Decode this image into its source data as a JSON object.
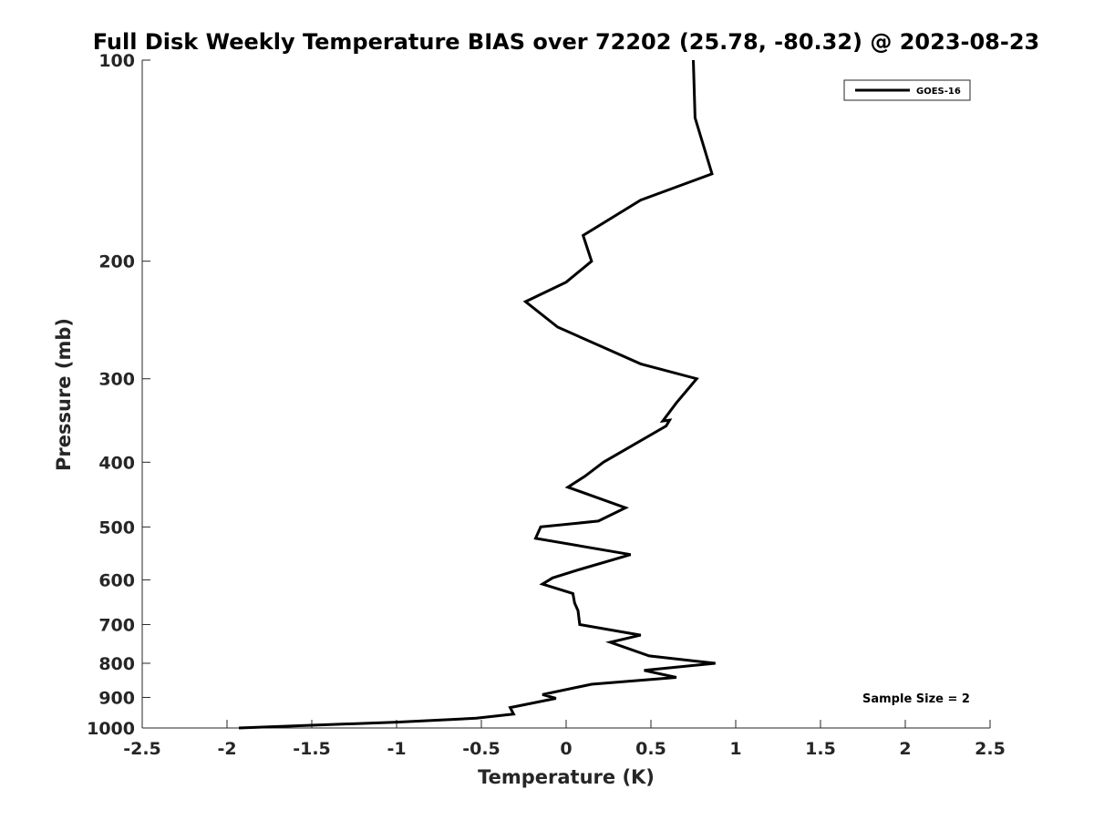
{
  "chart_data": {
    "type": "line",
    "title": "Full Disk Weekly Temperature BIAS over 72202 (25.78, -80.32) @ 2023-08-23",
    "xlabel": "Temperature (K)",
    "ylabel": "Pressure (mb)",
    "xlim": [
      -2.5,
      2.5
    ],
    "ylim": [
      1000,
      100
    ],
    "yscale": "log",
    "x_ticks": [
      "-2.5",
      "-2",
      "-1.5",
      "-1",
      "-0.5",
      "0",
      "0.5",
      "1",
      "1.5",
      "2",
      "2.5"
    ],
    "y_ticks": [
      "100",
      "200",
      "300",
      "400",
      "500",
      "600",
      "700",
      "800",
      "900",
      "1000"
    ],
    "grid": false,
    "legend_position": "top-right",
    "annotation": "Sample Size = 2",
    "series": [
      {
        "name": "GOES-16",
        "color": "#000000",
        "x": [
          0.75,
          0.76,
          0.86,
          0.44,
          0.1,
          0.15,
          0.0,
          -0.24,
          -0.05,
          0.44,
          0.77,
          0.65,
          0.57,
          0.61,
          0.59,
          0.22,
          0.11,
          0.01,
          0.35,
          0.19,
          -0.15,
          -0.18,
          0.38,
          0.08,
          -0.08,
          -0.14,
          0.04,
          0.05,
          0.07,
          0.08,
          0.44,
          0.26,
          0.49,
          0.88,
          0.46,
          0.65,
          0.15,
          -0.14,
          -0.06,
          -0.33,
          -0.31,
          -0.53,
          -1.0,
          -1.93
        ],
        "y": [
          100,
          122,
          148,
          162,
          183,
          200,
          215,
          230,
          251,
          285,
          300,
          326,
          347,
          346,
          353,
          400,
          420,
          436,
          468,
          490,
          500,
          520,
          550,
          579,
          596,
          609,
          629,
          650,
          667,
          700,
          726,
          744,
          780,
          800,
          820,
          840,
          860,
          891,
          903,
          932,
          953,
          967,
          980,
          1000
        ]
      }
    ]
  }
}
